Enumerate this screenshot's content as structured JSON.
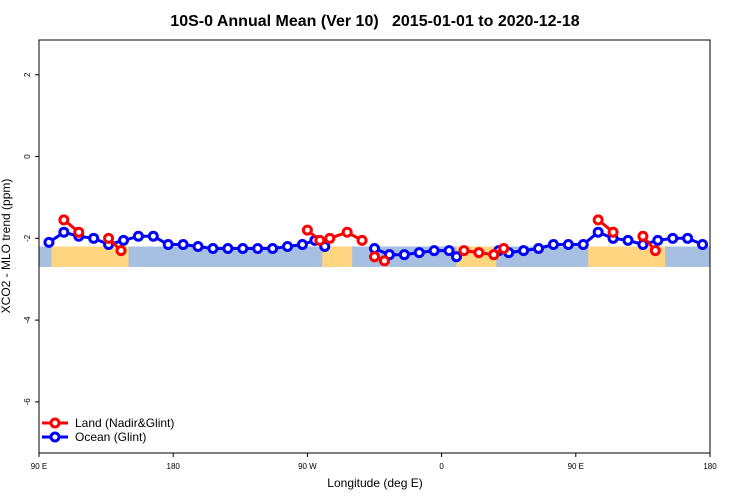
{
  "chart_data": {
    "type": "line",
    "title": "10S-0 Annual Mean (Ver 10)   2015-01-01 to 2020-12-18",
    "xlabel": "Longitude (deg E)",
    "ylabel": "XCO2 - MLO trend (ppm)",
    "xlim": [
      0,
      270
    ],
    "ylim": [
      -7.25,
      2.85
    ],
    "x_ticks": [
      0,
      54,
      108,
      162,
      216,
      270
    ],
    "x_tick_labels": [
      "90 E",
      "180",
      "90 W",
      "0",
      "90 E",
      "180"
    ],
    "y_ticks": [
      -6,
      -4,
      -2,
      0,
      2
    ],
    "y_tick_labels": [
      "-6",
      "-4",
      "-2",
      "0",
      "2"
    ],
    "band": {
      "ymin": -2.7,
      "ymax": -2.2,
      "ocean_color": "#a7bfe0",
      "land_color": "#ffd580"
    },
    "land_segments": [
      [
        5,
        36
      ],
      [
        114,
        126
      ],
      [
        168,
        184
      ],
      [
        221,
        252
      ]
    ],
    "series": [
      {
        "name": "Land (Nadir&Glint)",
        "color": "#ff0000",
        "segments": [
          {
            "x": [
              10,
              16
            ],
            "y": [
              -1.55,
              -1.85
            ]
          },
          {
            "x": [
              28,
              33
            ],
            "y": [
              -2.0,
              -2.3
            ]
          },
          {
            "x": [
              108,
              113,
              117,
              124,
              130
            ],
            "y": [
              -1.8,
              -2.05,
              -2.0,
              -1.85,
              -2.05
            ]
          },
          {
            "x": [
              135,
              139
            ],
            "y": [
              -2.45,
              -2.55
            ]
          },
          {
            "x": [
              171,
              177,
              183,
              187
            ],
            "y": [
              -2.3,
              -2.35,
              -2.4,
              -2.25
            ]
          },
          {
            "x": [
              225,
              231
            ],
            "y": [
              -1.55,
              -1.85
            ]
          },
          {
            "x": [
              243,
              248
            ],
            "y": [
              -1.95,
              -2.3
            ]
          }
        ]
      },
      {
        "name": "Ocean (Glint)",
        "color": "#0000ff",
        "segments": [
          {
            "x": [
              4,
              10,
              16,
              22,
              28,
              34,
              40,
              46,
              52,
              58,
              64,
              70,
              76,
              82,
              88,
              94,
              100,
              106,
              111,
              115
            ],
            "y": [
              -2.1,
              -1.85,
              -1.95,
              -2.0,
              -2.15,
              -2.05,
              -1.95,
              -1.95,
              -2.15,
              -2.15,
              -2.2,
              -2.25,
              -2.25,
              -2.25,
              -2.25,
              -2.25,
              -2.2,
              -2.15,
              -2.05,
              -2.2
            ]
          },
          {
            "x": [
              135,
              141,
              147,
              153,
              159,
              165,
              168
            ],
            "y": [
              -2.25,
              -2.4,
              -2.4,
              -2.35,
              -2.3,
              -2.3,
              -2.45
            ]
          },
          {
            "x": [
              185,
              189,
              195,
              201,
              207,
              213,
              219,
              225,
              231,
              237,
              243,
              249,
              255,
              261,
              267
            ],
            "y": [
              -2.3,
              -2.35,
              -2.3,
              -2.25,
              -2.15,
              -2.15,
              -2.15,
              -1.85,
              -2.0,
              -2.05,
              -2.15,
              -2.05,
              -2.0,
              -2.0,
              -2.15
            ]
          }
        ]
      }
    ],
    "legend": {
      "position": "bottom-left",
      "entries": [
        "Land (Nadir&Glint)",
        "Ocean (Glint)"
      ]
    }
  }
}
